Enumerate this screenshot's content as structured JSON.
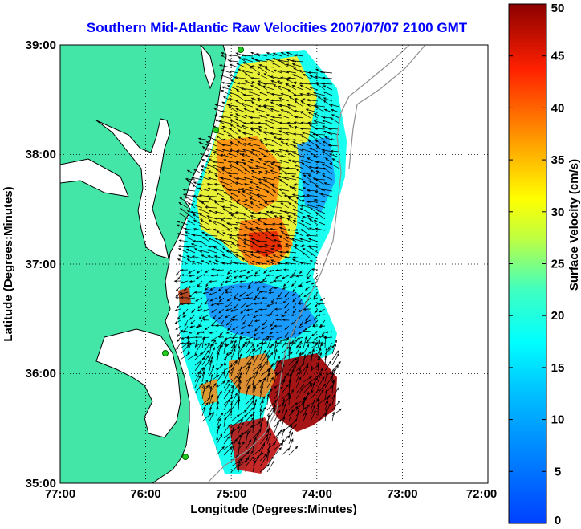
{
  "title": "Southern Mid-Atlantic Raw Velocities 2007/07/07 2100 GMT",
  "x_axis": {
    "label": "Longitude (Degrees:Minutes)",
    "ticks": [
      "77:00",
      "76:00",
      "75:00",
      "74:00",
      "73:00",
      "72:00"
    ]
  },
  "y_axis": {
    "label": "Latitude (Degrees:Minutes)",
    "ticks": [
      "39:00",
      "38:00",
      "37:00",
      "36:00",
      "35:00"
    ]
  },
  "colorbar": {
    "label": "Surface Velocity (cm/s)",
    "ticks": [
      "50",
      "45",
      "40",
      "35",
      "30",
      "25",
      "20",
      "15",
      "10",
      "5",
      "0"
    ],
    "range": [
      0,
      50
    ],
    "colormap": "jet"
  },
  "colors": {
    "land": "#44e6a8",
    "coast": "#000000",
    "title": "#0000ff",
    "grid": "#000000",
    "stations": "#22cc22"
  },
  "map_extent": {
    "lon": [
      -77,
      -72
    ],
    "lat": [
      35,
      39
    ]
  }
}
